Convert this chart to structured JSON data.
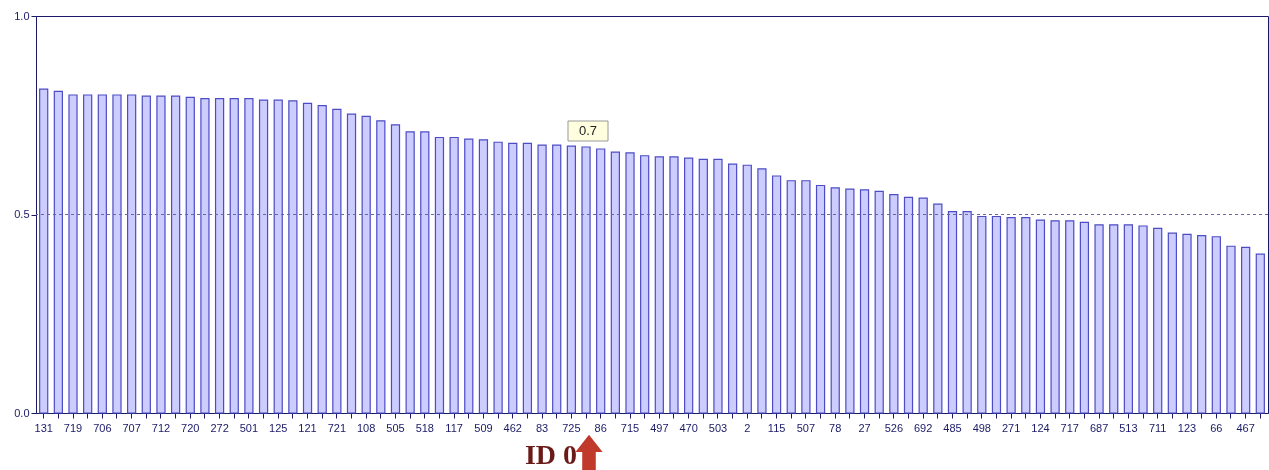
{
  "chart_data": {
    "type": "bar",
    "categories": [
      "131",
      null,
      "719",
      null,
      "706",
      null,
      "707",
      null,
      "712",
      null,
      "720",
      null,
      "272",
      null,
      "501",
      null,
      "125",
      null,
      "121",
      null,
      "721",
      null,
      "108",
      null,
      "505",
      null,
      "518",
      null,
      "117",
      null,
      "509",
      null,
      "462",
      null,
      "83",
      null,
      "725",
      null,
      "86",
      null,
      "715",
      null,
      "497",
      null,
      "470",
      null,
      "503",
      null,
      "2",
      null,
      "115",
      null,
      "507",
      null,
      "78",
      null,
      "27",
      null,
      "526",
      null,
      "692",
      null,
      "485",
      null,
      "498",
      null,
      "271",
      null,
      "124",
      null,
      "717",
      null,
      "687",
      null,
      "513",
      null,
      "711",
      null,
      "123",
      null,
      "66",
      null,
      "467",
      null
    ],
    "values": [
      0.816,
      0.81,
      0.801,
      0.801,
      0.801,
      0.801,
      0.801,
      0.798,
      0.798,
      0.798,
      0.795,
      0.792,
      0.792,
      0.792,
      0.792,
      0.788,
      0.788,
      0.786,
      0.78,
      0.774,
      0.765,
      0.753,
      0.747,
      0.736,
      0.726,
      0.708,
      0.708,
      0.694,
      0.694,
      0.69,
      0.688,
      0.682,
      0.679,
      0.679,
      0.675,
      0.675,
      0.672,
      0.67,
      0.665,
      0.657,
      0.655,
      0.648,
      0.645,
      0.645,
      0.642,
      0.639,
      0.639,
      0.627,
      0.624,
      0.615,
      0.597,
      0.585,
      0.585,
      0.573,
      0.567,
      0.564,
      0.562,
      0.558,
      0.55,
      0.543,
      0.541,
      0.526,
      0.507,
      0.507,
      0.495,
      0.495,
      0.492,
      0.492,
      0.486,
      0.484,
      0.484,
      0.48,
      0.474,
      0.474,
      0.474,
      0.471,
      0.465,
      0.453,
      0.45,
      0.447,
      0.444,
      0.42,
      0.417,
      0.4
    ],
    "color": "#ccccff",
    "ylim": [
      0,
      1.0
    ],
    "yticks": [
      {
        "value": 0,
        "label": "0.0"
      },
      0.5,
      {
        "value": 1,
        "label": "1.0"
      }
    ],
    "ref_lines": [
      {
        "axis": "y",
        "value": 0.5,
        "line_style": "dashed",
        "color": "#6666aa"
      }
    ],
    "annotations": [
      "0.7",
      "ID 0"
    ]
  }
}
